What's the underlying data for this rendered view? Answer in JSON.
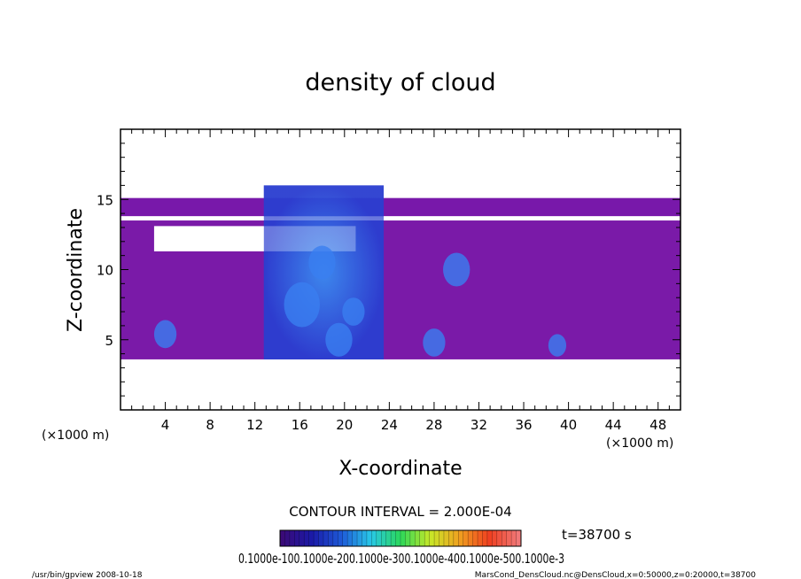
{
  "chart_data": {
    "type": "heatmap",
    "title": "density of cloud",
    "xlabel": "X-coordinate",
    "ylabel": "Z-coordinate",
    "x_unit": "(×1000 m)",
    "y_unit": "(×1000 m)",
    "xlim": [
      0,
      50
    ],
    "ylim": [
      0,
      20
    ],
    "x_ticks": [
      "4",
      "8",
      "12",
      "16",
      "20",
      "24",
      "28",
      "32",
      "36",
      "40",
      "44",
      "48"
    ],
    "y_ticks": [
      "5",
      "10",
      "15"
    ],
    "contour_interval": "CONTOUR INTERVAL = 2.000E-04",
    "time_label": "t=38700 s",
    "colorbar_labels": "0.1000e-100.1000e-200.1000e-300.1000e-400.1000e-500.1000e-3",
    "colorbar_colors": [
      "#3a0a78",
      "#1a1aa8",
      "#1e5ad8",
      "#29c8e8",
      "#2ad85a",
      "#c8e828",
      "#f0a020",
      "#f04020",
      "#f07878"
    ],
    "footer_left": "/usr/bin/gpview   2008-10-18",
    "footer_right": "MarsCond_DensCloud.nc@DensCloud,x=0:50000,z=0:20000,t=38700",
    "cloud_bands": [
      {
        "name": "main-layer",
        "x": [
          0,
          50
        ],
        "z": [
          3.6,
          13.5
        ],
        "level": "low",
        "color": "#7a1aa8"
      },
      {
        "name": "upper-layer",
        "x": [
          0,
          50
        ],
        "z": [
          13.8,
          15.1
        ],
        "level": "low",
        "color": "#7818aa"
      },
      {
        "name": "convective-core",
        "x": [
          12.8,
          23.5
        ],
        "z": [
          3.6,
          16.0
        ],
        "level": "high",
        "color": "#2a48e0"
      }
    ],
    "gaps": [
      {
        "x": [
          0,
          50
        ],
        "z": [
          13.5,
          13.8
        ]
      },
      {
        "x": [
          3,
          21
        ],
        "z": [
          11.3,
          13.1
        ]
      }
    ],
    "blobs": [
      {
        "cx": 4.0,
        "cz": 5.4,
        "r": 1.0
      },
      {
        "cx": 16.2,
        "cz": 7.5,
        "r": 1.6
      },
      {
        "cx": 18.0,
        "cz": 10.5,
        "r": 1.2
      },
      {
        "cx": 20.8,
        "cz": 7.0,
        "r": 1.0
      },
      {
        "cx": 19.5,
        "cz": 5.0,
        "r": 1.2
      },
      {
        "cx": 28.0,
        "cz": 4.8,
        "r": 1.0
      },
      {
        "cx": 30.0,
        "cz": 10.0,
        "r": 1.2
      },
      {
        "cx": 39.0,
        "cz": 4.6,
        "r": 0.8
      }
    ]
  }
}
